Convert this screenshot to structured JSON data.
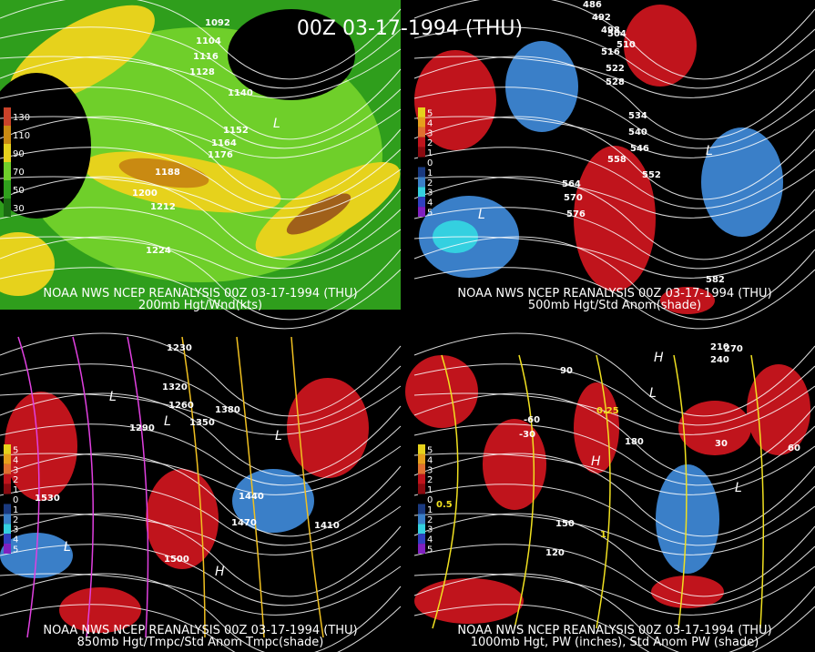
{
  "title": "00Z 03-17-1994 (THU)",
  "panels": [
    {
      "source": "NOAA NWS NCEP REANALYSIS 00Z 03-17-1994 (THU)",
      "caption": "200mb Hgt/Wnd(kts)",
      "legend": [
        "130",
        "110",
        "90",
        "70",
        "50",
        "30"
      ],
      "contours": [
        "1092",
        "1104",
        "1116",
        "1128",
        "1140",
        "1152",
        "1164",
        "1176",
        "1188",
        "1200",
        "1212",
        "1224"
      ],
      "lows": [
        "L"
      ]
    },
    {
      "source": "NOAA NWS NCEP REANALYSIS 00Z 03-17-1994 (THU)",
      "caption": "500mb Hgt/Std Anom(shade)",
      "legend": [
        "5",
        "4",
        "3",
        "2",
        "1",
        "0",
        "1",
        "2",
        "3",
        "4",
        "5"
      ],
      "contours": [
        "486",
        "492",
        "498",
        "504",
        "510",
        "516",
        "522",
        "528",
        "534",
        "540",
        "546",
        "552",
        "558",
        "564",
        "570",
        "576",
        "582"
      ],
      "lows": [
        "L",
        "L"
      ]
    },
    {
      "source": "NOAA NWS NCEP REANALYSIS 00Z 03-17-1994 (THU)",
      "caption": "850mb Hgt/Tmpc/Std Anom Tmpc(shade)",
      "legend": [
        "5",
        "4",
        "3",
        "2",
        "1",
        "0",
        "1",
        "2",
        "3",
        "4",
        "5"
      ],
      "contours": [
        "1230",
        "1260",
        "1290",
        "1320",
        "1350",
        "1380",
        "1410",
        "1440",
        "1470",
        "1500",
        "1530"
      ],
      "lows": [
        "L",
        "L",
        "L",
        "L",
        "H"
      ]
    },
    {
      "source": "NOAA NWS NCEP REANALYSIS 00Z 03-17-1994 (THU)",
      "caption": "1000mb Hgt, PW (inches), Std Anom PW (shade)",
      "legend": [
        "5",
        "4",
        "3",
        "2",
        "1",
        "0",
        "1",
        "2",
        "3",
        "4",
        "5"
      ],
      "contours": [
        "-60",
        "-30",
        "30",
        "60",
        "90",
        "120",
        "150",
        "180",
        "210",
        "240",
        "270"
      ],
      "pw": [
        "0.25",
        "0.5",
        "1"
      ],
      "lows": [
        "H",
        "L",
        "L",
        "H"
      ]
    }
  ]
}
